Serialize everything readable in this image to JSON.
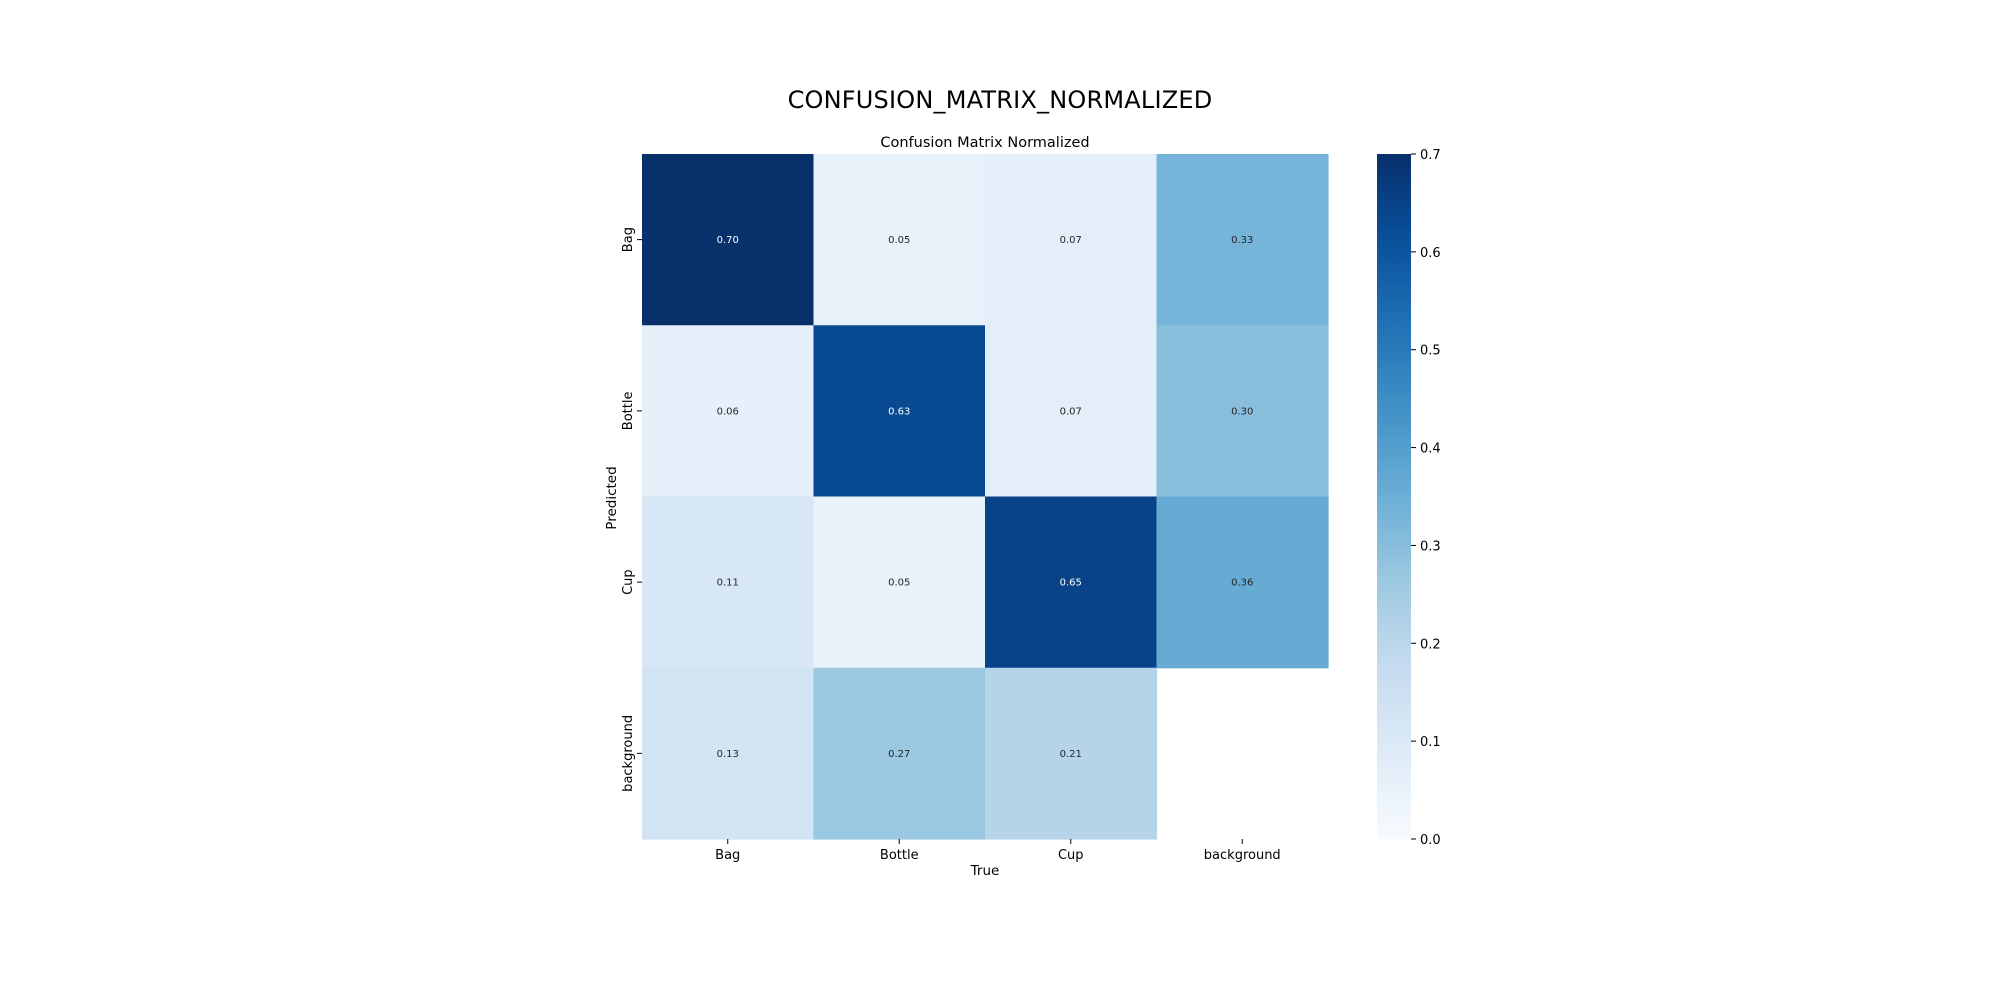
{
  "page_title": "CONFUSION_MATRIX_NORMALIZED",
  "chart_data": {
    "type": "heatmap",
    "title": "Confusion Matrix Normalized",
    "xlabel": "True",
    "ylabel": "Predicted",
    "x_categories": [
      "Bag",
      "Bottle",
      "Cup",
      "background"
    ],
    "y_categories": [
      "Bag",
      "Bottle",
      "Cup",
      "background"
    ],
    "values": [
      [
        0.7,
        0.05,
        0.07,
        0.33
      ],
      [
        0.06,
        0.63,
        0.07,
        0.3
      ],
      [
        0.11,
        0.05,
        0.65,
        0.36
      ],
      [
        0.13,
        0.27,
        0.21,
        null
      ]
    ],
    "value_format": "0.00",
    "colormap": "Blues",
    "colorbar": {
      "range": [
        0.0,
        0.7
      ],
      "ticks": [
        0.0,
        0.1,
        0.2,
        0.3,
        0.4,
        0.5,
        0.6,
        0.7
      ],
      "tick_labels": [
        "0.0",
        "0.1",
        "0.2",
        "0.3",
        "0.4",
        "0.5",
        "0.6",
        "0.7"
      ]
    }
  }
}
